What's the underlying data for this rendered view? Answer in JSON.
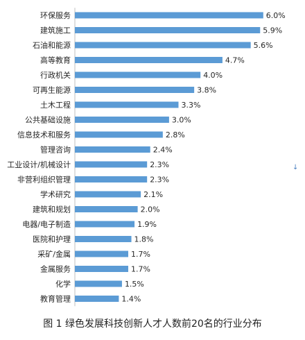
{
  "caption": "图 1 绿色发展科技创新人才人数前20名的行业分布",
  "cursor_glyph": "↓",
  "chart_data": {
    "type": "bar",
    "orientation": "horizontal",
    "color": "#5b9bd5",
    "categories": [
      "环保服务",
      "建筑施工",
      "石油和能源",
      "高等教育",
      "行政机关",
      "可再生能源",
      "土木工程",
      "公共基础设施",
      "信息技术和服务",
      "管理咨询",
      "工业设计/机械设计",
      "非营利组织管理",
      "学术研究",
      "建筑和规划",
      "电器/电子制造",
      "医院和护理",
      "采矿/金属",
      "金属服务",
      "化学",
      "教育管理"
    ],
    "values": [
      6.0,
      5.9,
      5.6,
      4.7,
      4.0,
      3.8,
      3.3,
      3.0,
      2.8,
      2.4,
      2.3,
      2.3,
      2.1,
      2.0,
      1.9,
      1.8,
      1.7,
      1.7,
      1.5,
      1.4
    ],
    "value_labels": [
      "6.0%",
      "5.9%",
      "5.6%",
      "4.7%",
      "4.0%",
      "3.8%",
      "3.3%",
      "3.0%",
      "2.8%",
      "2.4%",
      "2.3%",
      "2.3%",
      "2.1%",
      "2.0%",
      "1.9%",
      "1.8%",
      "1.7%",
      "1.7%",
      "1.5%",
      "1.4%"
    ]
  }
}
